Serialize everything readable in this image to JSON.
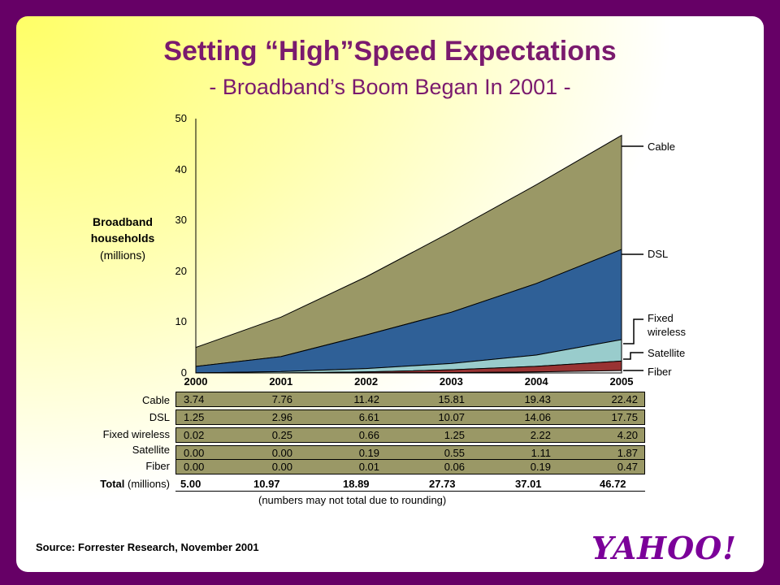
{
  "title": "Setting “High”Speed Expectations",
  "subtitle": "-  Broadband’s Boom Began In 2001 -",
  "y_axis_label": {
    "line1": "Broadband",
    "line2": "households",
    "line3": "(millions)"
  },
  "table": {
    "total_label": "Total",
    "total_unit": "(millions)",
    "note": "(numbers  may not total due to rounding)"
  },
  "source": "Source: Forrester Research, November 2001",
  "logo_text": "YAHOO!",
  "colors": {
    "background": "#660066",
    "title": "#7a1a6e",
    "cable": "#9a9866",
    "dsl": "#2f6097",
    "fixed_wireless": "#99cccc",
    "satellite": "#993333",
    "fiber": "#ffffff"
  },
  "chart_data": {
    "type": "area",
    "stacked": true,
    "x": [
      "2000",
      "2001",
      "2002",
      "2003",
      "2004",
      "2005"
    ],
    "ylim": [
      0,
      50
    ],
    "yticks": [
      "0",
      "10",
      "20",
      "30",
      "40",
      "50"
    ],
    "xlabel": "",
    "ylabel": "Broadband households (millions)",
    "legend_position": "right",
    "series": [
      {
        "name": "Fiber",
        "label": "Fiber",
        "values": [
          0.0,
          0.0,
          0.01,
          0.06,
          0.19,
          0.47
        ],
        "labels": [
          "0.00",
          "0.00",
          "0.01",
          "0.06",
          "0.19",
          "0.47"
        ]
      },
      {
        "name": "Satellite",
        "label": "Satellite",
        "values": [
          0.0,
          0.0,
          0.19,
          0.55,
          1.11,
          1.87
        ],
        "labels": [
          "0.00",
          "0.00",
          "0.19",
          "0.55",
          "1.11",
          "1.87"
        ]
      },
      {
        "name": "Fixed wireless",
        "label": "Fixed wireless",
        "values": [
          0.02,
          0.25,
          0.66,
          1.25,
          2.22,
          4.2
        ],
        "labels": [
          "0.02",
          "0.25",
          "0.66",
          "1.25",
          "2.22",
          "4.20"
        ]
      },
      {
        "name": "DSL",
        "label": "DSL",
        "values": [
          1.25,
          2.96,
          6.61,
          10.07,
          14.06,
          17.75
        ],
        "labels": [
          "1.25",
          "2.96",
          "6.61",
          "10.07",
          "14.06",
          "17.75"
        ]
      },
      {
        "name": "Cable",
        "label": "Cable",
        "values": [
          3.74,
          7.76,
          11.42,
          15.81,
          19.43,
          22.42
        ],
        "labels": [
          "3.74",
          "7.76",
          "11.42",
          "15.81",
          "19.43",
          "22.42"
        ]
      }
    ],
    "legend_labels": {
      "cable": "Cable",
      "dsl": "DSL",
      "fixed_wireless_1": "Fixed",
      "fixed_wireless_2": "wireless",
      "satellite": "Satellite",
      "fiber": "Fiber"
    },
    "totals": [
      "5.00",
      "10.97",
      "18.89",
      "27.73",
      "37.01",
      "46.72"
    ]
  }
}
